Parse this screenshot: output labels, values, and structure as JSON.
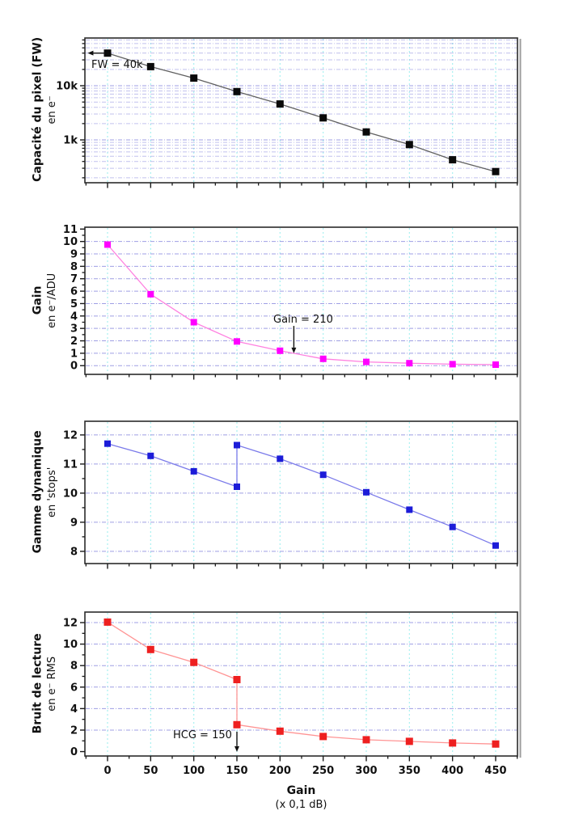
{
  "figure": {
    "x_title": "Gain",
    "x_subtitle": "(x 0,1 dB)"
  },
  "chart_data": {
    "type": "line",
    "xlabel": "Gain (x 0,1 dB)",
    "xlim": [
      -26.2,
      475.3
    ],
    "x_major_ticks": [
      0,
      50,
      100,
      150,
      200,
      250,
      300,
      350,
      400,
      450
    ],
    "x_minor_ticks": [
      -25,
      25,
      75,
      125,
      175,
      225,
      275,
      325,
      375,
      425,
      475
    ],
    "x_tick_labels": [
      "0",
      "50",
      "100",
      "150",
      "200",
      "250",
      "300",
      "350",
      "400",
      "450"
    ],
    "grid": {
      "vertical_color": "#9ff0f0",
      "horizontal_color": "#8f8fe0"
    },
    "panels": [
      {
        "name": "capacite-du-pixel",
        "ylabel_main": "Capacité du pixel (FW)",
        "ylabel_sub": "en e⁻",
        "yscale": "log",
        "ylim": [
          162,
          76000
        ],
        "yticks": [
          {
            "v": 10000,
            "t": "10k"
          },
          {
            "v": 1000,
            "t": "1k"
          }
        ],
        "yticks_minor": [
          200,
          300,
          400,
          500,
          600,
          700,
          800,
          900,
          2000,
          3000,
          4000,
          5000,
          6000,
          7000,
          8000,
          9000,
          20000,
          30000,
          40000,
          50000,
          60000,
          70000
        ],
        "ygrid_major": [
          1000,
          10000
        ],
        "ygrid_minor": [
          200,
          300,
          400,
          500,
          600,
          700,
          800,
          900,
          2000,
          3000,
          4000,
          5000,
          6000,
          7000,
          8000,
          9000,
          20000,
          30000,
          40000,
          50000,
          60000,
          70000
        ],
        "color_line": "#606060",
        "color_marker": "#0a0a0a",
        "marker_size": 9,
        "points": [
          [
            0,
            40000
          ],
          [
            50,
            22500
          ],
          [
            100,
            13800
          ],
          [
            150,
            7800
          ],
          [
            200,
            4600
          ],
          [
            250,
            2550
          ],
          [
            300,
            1400
          ],
          [
            350,
            820
          ],
          [
            400,
            430
          ],
          [
            450,
            260
          ]
        ],
        "annotation": {
          "text": "FW = 40k",
          "arrow": {
            "from": [
              -3,
              40000
            ],
            "to": [
              -23,
              40000
            ]
          }
        }
      },
      {
        "name": "gain",
        "ylabel_main": "Gain",
        "ylabel_sub": "en e⁻/ADU",
        "yscale": "linear",
        "ylim": [
          -0.7,
          11.15
        ],
        "yticks": [
          {
            "v": 0,
            "t": "0"
          },
          {
            "v": 1,
            "t": "1"
          },
          {
            "v": 2,
            "t": "2"
          },
          {
            "v": 3,
            "t": "3"
          },
          {
            "v": 4,
            "t": "4"
          },
          {
            "v": 5,
            "t": "5"
          },
          {
            "v": 6,
            "t": "6"
          },
          {
            "v": 7,
            "t": "7"
          },
          {
            "v": 8,
            "t": "8"
          },
          {
            "v": 9,
            "t": "9"
          },
          {
            "v": 10,
            "t": "10"
          },
          {
            "v": 11,
            "t": "11"
          }
        ],
        "yticks_minor": [
          0.5,
          1.5,
          2.5,
          3.5,
          4.5,
          5.5,
          6.5,
          7.5,
          8.5,
          9.5,
          10.5
        ],
        "ygrid_major": [
          0,
          1,
          2,
          3,
          4,
          5,
          6,
          7,
          8,
          9,
          10
        ],
        "ygrid_minor": [],
        "color_line": "#ff80e0",
        "color_marker": "#ff00ff",
        "marker_size": 8,
        "points": [
          [
            0,
            9.75
          ],
          [
            50,
            5.75
          ],
          [
            100,
            3.5
          ],
          [
            150,
            1.95
          ],
          [
            200,
            1.2
          ],
          [
            250,
            0.55
          ],
          [
            300,
            0.3
          ],
          [
            350,
            0.2
          ],
          [
            400,
            0.12
          ],
          [
            450,
            0.08
          ]
        ],
        "annotation": {
          "text": "Gain = 210",
          "arrow": {
            "from": [
              216,
              3.2
            ],
            "to": [
              216,
              1.0
            ]
          }
        }
      },
      {
        "name": "gamme-dynamique",
        "ylabel_main": "Gamme dynamique",
        "ylabel_sub": "en 'stops'",
        "yscale": "linear",
        "ylim": [
          7.58,
          12.47
        ],
        "yticks": [
          {
            "v": 8,
            "t": "8"
          },
          {
            "v": 9,
            "t": "9"
          },
          {
            "v": 10,
            "t": "10"
          },
          {
            "v": 11,
            "t": "11"
          },
          {
            "v": 12,
            "t": "12"
          }
        ],
        "yticks_minor": [
          8.5,
          9.5,
          10.5,
          11.5
        ],
        "ygrid_major": [
          8,
          9,
          10,
          11,
          12
        ],
        "ygrid_minor": [],
        "color_line": "#7a7aea",
        "color_marker": "#1c1cd8",
        "marker_size": 8,
        "points": [
          [
            0,
            11.7
          ],
          [
            50,
            11.28
          ],
          [
            100,
            10.75
          ],
          [
            150,
            10.22
          ],
          [
            150,
            11.65
          ],
          [
            200,
            11.18
          ],
          [
            250,
            10.63
          ],
          [
            300,
            10.03
          ],
          [
            350,
            9.43
          ],
          [
            400,
            8.84
          ],
          [
            450,
            8.2
          ]
        ]
      },
      {
        "name": "bruit-de-lecture",
        "ylabel_main": "Bruit de lecture",
        "ylabel_sub": "en e⁻ RMS",
        "yscale": "linear",
        "ylim": [
          -0.41,
          12.98
        ],
        "yticks": [
          {
            "v": 0,
            "t": "0"
          },
          {
            "v": 2,
            "t": "2"
          },
          {
            "v": 4,
            "t": "4"
          },
          {
            "v": 6,
            "t": "6"
          },
          {
            "v": 8,
            "t": "8"
          },
          {
            "v": 10,
            "t": "10"
          },
          {
            "v": 12,
            "t": "12"
          }
        ],
        "yticks_minor": [
          1,
          3,
          5,
          7,
          9,
          11
        ],
        "ygrid_major": [
          2,
          4,
          6,
          8,
          10,
          12
        ],
        "ygrid_minor": [],
        "color_line": "#ff9494",
        "color_marker": "#ee2020",
        "marker_size": 9,
        "points": [
          [
            0,
            12.05
          ],
          [
            50,
            9.5
          ],
          [
            100,
            8.3
          ],
          [
            150,
            6.7
          ],
          [
            150,
            2.5
          ],
          [
            200,
            1.9
          ],
          [
            250,
            1.4
          ],
          [
            300,
            1.1
          ],
          [
            350,
            0.95
          ],
          [
            400,
            0.8
          ],
          [
            450,
            0.7
          ]
        ],
        "annotation": {
          "text": "HCG = 150",
          "arrow": {
            "from": [
              150,
              1.85
            ],
            "to": [
              150,
              -0.02
            ]
          }
        }
      }
    ]
  }
}
